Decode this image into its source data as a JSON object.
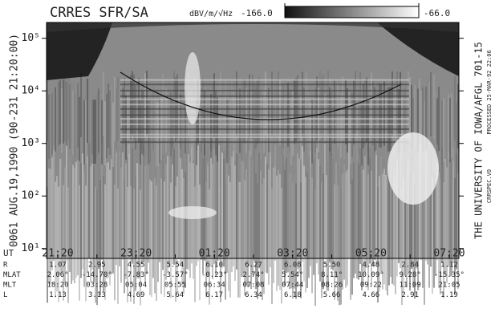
{
  "chart_data": {
    "type": "spectrogram",
    "title": "CRRES SFR/SA",
    "colorbar": {
      "units": "dBV/m/√Hz",
      "min": {
        "value": -166,
        "label": "-166.0"
      },
      "max": {
        "value": -66,
        "label": "-66.0"
      }
    },
    "yscale": "log",
    "ylim": [
      6.5,
      200000
    ],
    "yticks": [
      {
        "value": 10,
        "label": "10¹"
      },
      {
        "value": 100,
        "label": "10²"
      },
      {
        "value": 1000,
        "label": "10³"
      },
      {
        "value": 10000,
        "label": "10⁴"
      },
      {
        "value": 100000,
        "label": "10⁵"
      }
    ],
    "xlabel": "UT",
    "xtick_labels": [
      "21:20",
      "23:20",
      "01:20",
      "03:20",
      "05:20",
      "07:20"
    ],
    "left_caption": "0061   AUG.19,1990 (90-231 21:20:00)",
    "right_captions": [
      "THE UNIVERSITY OF IOWA/AFGL 701-15",
      "PROCESSED 25-MAR-92 22:06",
      "CRRSPEC.V0"
    ],
    "ephemeris": [
      {
        "label": "R",
        "values": [
          "1.07",
          "2.95",
          "4.55",
          "5.54",
          "6.10",
          "6.27",
          "6.08",
          "5.50",
          "4.48",
          "2.84",
          "1.12"
        ]
      },
      {
        "label": "MLAT",
        "values": [
          "2.06°",
          "-14.70°",
          "-7.83°",
          "-3.57°",
          "-0.23°",
          "2.74°",
          "5.54°",
          "8.11°",
          "10.09°",
          "9.28°",
          "-15.35°"
        ]
      },
      {
        "label": "MLT",
        "values": [
          "18:20",
          "03:28",
          "05:04",
          "05:55",
          "06:34",
          "07:08",
          "07:44",
          "08:26",
          "09:22",
          "11:09",
          "21:05"
        ]
      },
      {
        "label": "L",
        "values": [
          "1.13",
          "3.13",
          "4.69",
          "5.64",
          "6.17",
          "6.34",
          "6.18",
          "5.66",
          "4.66",
          "2.91",
          "1.19"
        ]
      }
    ]
  }
}
